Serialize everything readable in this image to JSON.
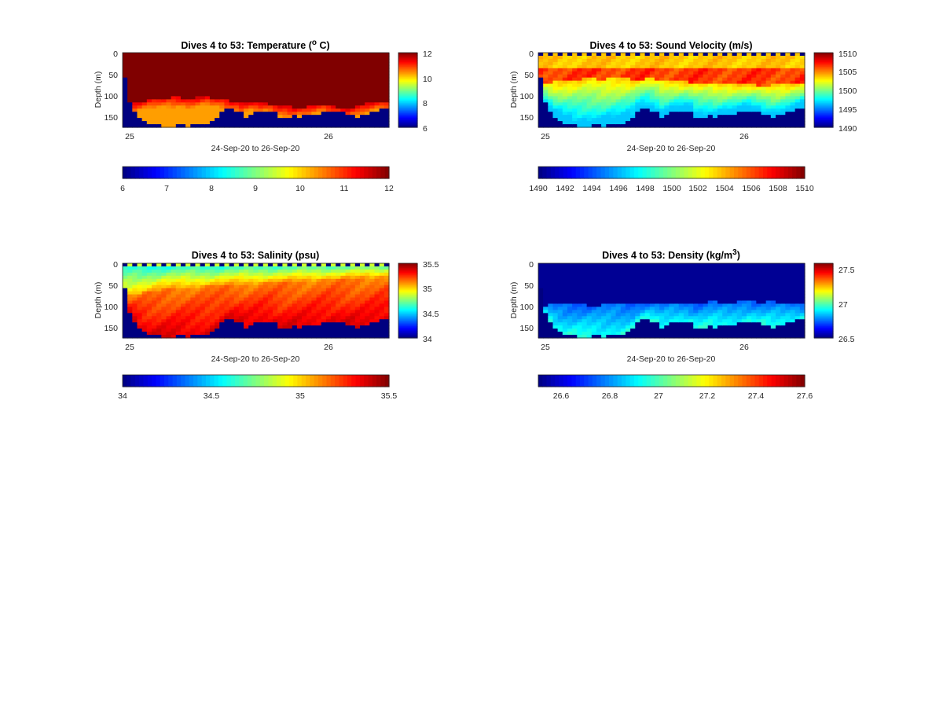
{
  "figure": {
    "xlabel": "24-Sep-20 to 26-Sep-20",
    "x_tick_labels": [
      "25",
      "26"
    ],
    "ylabel": "Depth (m)",
    "y_tick_labels": [
      "0",
      "50",
      "100",
      "150"
    ]
  },
  "chart_data": [
    {
      "type": "heatmap",
      "title_main": "Dives 4 to 53: Temperature (",
      "title_sup": "o",
      "title_tail": " C)",
      "variable": "Temperature",
      "xlabel": "24-Sep-20 to 26-Sep-20",
      "ylabel": "Depth (m)",
      "x_ticks": [
        25,
        26
      ],
      "y_ticks": [
        0,
        50,
        100,
        150
      ],
      "ylim": [
        0,
        175
      ],
      "colormap": "jet",
      "clim": [
        6,
        12
      ],
      "colorbar_right_ticks": [
        "6",
        "8",
        "10",
        "12"
      ],
      "colorbar_bottom_ticks": [
        "6",
        "7",
        "8",
        "9",
        "10",
        "11",
        "12"
      ],
      "depth_bottom_m": [
        60,
        120,
        135,
        150,
        158,
        165,
        168,
        170,
        172,
        172,
        172,
        171,
        170,
        172,
        170,
        168,
        168,
        166,
        160,
        155,
        140,
        132,
        130,
        135,
        140,
        150,
        145,
        140,
        138,
        135,
        135,
        140,
        152,
        152,
        150,
        148,
        150,
        148,
        146,
        145,
        143,
        140,
        138,
        135,
        138,
        140,
        143,
        146,
        150,
        148,
        145,
        140,
        135,
        130,
        128
      ],
      "warm_layer_top_m": [
        130,
        122,
        118,
        116,
        114,
        112,
        110,
        108,
        108,
        106,
        105,
        104,
        106,
        108,
        106,
        105,
        104,
        104,
        106,
        108,
        110,
        112,
        114,
        115,
        118,
        116,
        116,
        118,
        120,
        120,
        122,
        124,
        126,
        126,
        127,
        128,
        128,
        128,
        126,
        124,
        122,
        122,
        124,
        126,
        128,
        130,
        130,
        128,
        126,
        122,
        120,
        118,
        116,
        116,
        115
      ]
    },
    {
      "type": "heatmap",
      "title_main": "Dives 4 to 53: Sound Velocity (m/s)",
      "title_sup": "",
      "title_tail": "",
      "variable": "Sound Velocity",
      "xlabel": "24-Sep-20 to 26-Sep-20",
      "ylabel": "Depth (m)",
      "x_ticks": [
        25,
        26
      ],
      "y_ticks": [
        0,
        50,
        100,
        150
      ],
      "ylim": [
        0,
        175
      ],
      "colormap": "jet",
      "clim": [
        1490,
        1510
      ],
      "colorbar_right_ticks": [
        "1490",
        "1495",
        "1500",
        "1505",
        "1510"
      ],
      "colorbar_bottom_ticks": [
        "1490",
        "1492",
        "1494",
        "1496",
        "1498",
        "1500",
        "1502",
        "1504",
        "1506",
        "1508",
        "1510"
      ],
      "depth_bottom_m": [
        60,
        120,
        135,
        150,
        158,
        165,
        168,
        170,
        172,
        172,
        172,
        171,
        170,
        172,
        170,
        168,
        168,
        166,
        160,
        155,
        140,
        132,
        130,
        135,
        140,
        150,
        145,
        140,
        138,
        135,
        135,
        140,
        152,
        152,
        150,
        148,
        150,
        148,
        146,
        145,
        143,
        140,
        138,
        135,
        138,
        140,
        143,
        146,
        150,
        148,
        145,
        140,
        135,
        130,
        128
      ],
      "warm_layer_top_m": [
        75,
        72,
        70,
        68,
        66,
        64,
        64,
        62,
        62,
        60,
        60,
        60,
        62,
        62,
        60,
        60,
        58,
        58,
        60,
        62,
        62,
        62,
        60,
        60,
        62,
        64,
        66,
        66,
        66,
        68,
        68,
        70,
        70,
        72,
        72,
        72,
        74,
        74,
        72,
        72,
        72,
        74,
        74,
        76,
        76,
        78,
        78,
        78,
        76,
        76,
        74,
        74,
        72,
        72,
        70
      ]
    },
    {
      "type": "heatmap",
      "title_main": "Dives 4 to 53: Salinity (psu)",
      "title_sup": "",
      "title_tail": "",
      "variable": "Salinity",
      "xlabel": "24-Sep-20 to 26-Sep-20",
      "ylabel": "Depth (m)",
      "x_ticks": [
        25,
        26
      ],
      "y_ticks": [
        0,
        50,
        100,
        150
      ],
      "ylim": [
        0,
        175
      ],
      "colormap": "jet",
      "clim": [
        34,
        35.5
      ],
      "colorbar_right_ticks": [
        "34",
        "34.5",
        "35",
        "35.5"
      ],
      "colorbar_bottom_ticks": [
        "34",
        "34.5",
        "35",
        "35.5"
      ],
      "depth_bottom_m": [
        60,
        120,
        135,
        150,
        158,
        165,
        168,
        170,
        172,
        172,
        172,
        171,
        170,
        172,
        170,
        168,
        168,
        166,
        160,
        155,
        140,
        132,
        130,
        135,
        140,
        150,
        145,
        140,
        138,
        135,
        135,
        140,
        152,
        152,
        150,
        148,
        150,
        148,
        146,
        145,
        143,
        140,
        138,
        135,
        138,
        140,
        143,
        146,
        150,
        148,
        145,
        140,
        135,
        130,
        128
      ],
      "warm_layer_top_m": [
        80,
        76,
        72,
        70,
        68,
        66,
        64,
        62,
        60,
        60,
        58,
        58,
        56,
        56,
        55,
        55,
        54,
        54,
        54,
        52,
        52,
        50,
        50,
        50,
        48,
        48,
        48,
        48,
        46,
        46,
        46,
        46,
        44,
        44,
        44,
        44,
        42,
        42,
        42,
        42,
        40,
        40,
        40,
        40,
        40,
        38,
        38,
        38,
        36,
        36,
        36,
        36,
        34,
        34,
        34
      ]
    },
    {
      "type": "heatmap",
      "title_main": "Dives 4 to 53: Density (kg/m",
      "title_sup": "3",
      "title_tail": ")",
      "variable": "Density",
      "xlabel": "24-Sep-20 to 26-Sep-20",
      "ylabel": "Depth (m)",
      "x_ticks": [
        25,
        26
      ],
      "y_ticks": [
        0,
        50,
        100,
        150
      ],
      "ylim": [
        0,
        175
      ],
      "colormap": "jet",
      "clim": [
        26.5,
        27.6
      ],
      "colorbar_right_ticks": [
        "26.5",
        "27",
        "27.5"
      ],
      "colorbar_bottom_ticks": [
        "26.6",
        "26.8",
        "27",
        "27.2",
        "27.4",
        "27.6"
      ],
      "depth_bottom_m": [
        60,
        120,
        135,
        150,
        158,
        165,
        168,
        170,
        172,
        172,
        172,
        171,
        170,
        172,
        170,
        168,
        168,
        166,
        160,
        155,
        140,
        132,
        130,
        135,
        140,
        150,
        145,
        140,
        138,
        135,
        135,
        140,
        152,
        152,
        150,
        148,
        150,
        148,
        146,
        145,
        143,
        140,
        138,
        135,
        138,
        140,
        143,
        146,
        150,
        148,
        145,
        140,
        135,
        130,
        128
      ],
      "warm_layer_top_m": [
        105,
        100,
        98,
        98,
        96,
        96,
        95,
        95,
        96,
        98,
        100,
        102,
        100,
        98,
        96,
        95,
        95,
        96,
        98,
        98,
        96,
        94,
        92,
        92,
        94,
        96,
        95,
        93,
        92,
        92,
        93,
        94,
        95,
        94,
        92,
        90,
        90,
        92,
        94,
        94,
        92,
        90,
        88,
        88,
        90,
        92,
        92,
        90,
        90,
        92,
        94,
        94,
        96,
        98,
        98
      ]
    }
  ]
}
